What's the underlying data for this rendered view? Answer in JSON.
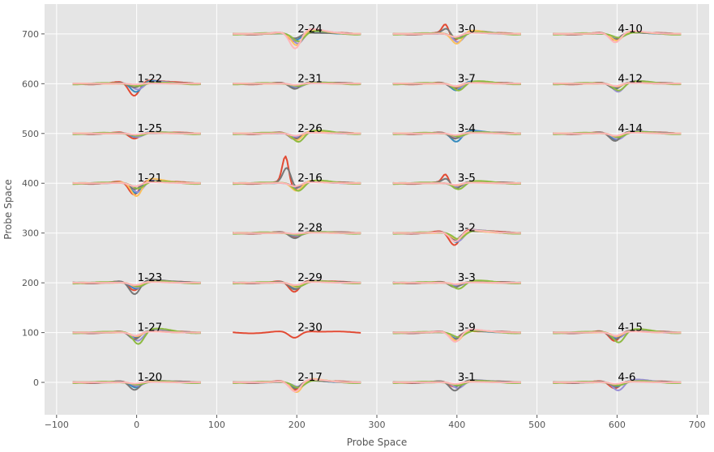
{
  "chart_data": {
    "type": "line",
    "title": "",
    "xlabel": "Probe Space",
    "ylabel": "Probe Space",
    "xlim": [
      -115,
      715
    ],
    "ylim": [
      -65,
      760
    ],
    "xticks": [
      -100,
      0,
      100,
      200,
      300,
      400,
      500,
      600,
      700
    ],
    "yticks": [
      0,
      100,
      200,
      300,
      400,
      500,
      600,
      700
    ],
    "grid": true,
    "background": "#e5e5e5",
    "grid_color": "#ffffff",
    "colors": [
      "#e24a33",
      "#348abd",
      "#988ed5",
      "#777777",
      "#fbc15e",
      "#8eba42",
      "#ffb5b8"
    ],
    "units": [
      {
        "label": "1-22",
        "x": 0,
        "y": 600,
        "dips": [
          -32,
          -22,
          -14,
          -10,
          -6,
          -4,
          -2
        ]
      },
      {
        "label": "1-25",
        "x": 0,
        "y": 500,
        "dips": [
          -14,
          -10,
          -8,
          -6,
          -5,
          -4,
          -3
        ]
      },
      {
        "label": "1-21",
        "x": 0,
        "y": 400,
        "dips": [
          -30,
          -26,
          -22,
          -16,
          -34,
          -12,
          -8
        ]
      },
      {
        "label": "1-23",
        "x": 0,
        "y": 200,
        "dips": [
          -20,
          -16,
          -12,
          -30,
          -10,
          -8,
          -6
        ]
      },
      {
        "label": "1-27",
        "x": 0,
        "y": 100,
        "dips": [
          -16,
          -12,
          -20,
          -18,
          -10,
          -28,
          -8
        ]
      },
      {
        "label": "1-20",
        "x": 0,
        "y": 0,
        "dips": [
          -10,
          -14,
          -8,
          -20,
          -6,
          -4,
          -3
        ]
      },
      {
        "label": "2-24",
        "x": 200,
        "y": 700,
        "dips": [
          -20,
          -16,
          -24,
          -12,
          -30,
          -18,
          -38
        ]
      },
      {
        "label": "2-31",
        "x": 200,
        "y": 600,
        "dips": [
          -12,
          -10,
          -8,
          -14,
          -6,
          -4,
          -3
        ]
      },
      {
        "label": "2-26",
        "x": 200,
        "y": 500,
        "dips": [
          -14,
          -10,
          -8,
          -16,
          -18,
          -20,
          -6
        ]
      },
      {
        "label": "2-16",
        "x": 200,
        "y": 400,
        "dips": [
          -16,
          -12,
          -10,
          -14,
          -20,
          -18,
          -8
        ],
        "spike": 55
      },
      {
        "label": "2-28",
        "x": 200,
        "y": 300,
        "dips": [
          -12,
          -8,
          -6,
          -14,
          -4,
          -3,
          -2
        ]
      },
      {
        "label": "2-29",
        "x": 200,
        "y": 200,
        "dips": [
          -24,
          -16,
          -10,
          -18,
          -12,
          -8,
          -6
        ]
      },
      {
        "label": "2-30",
        "x": 200,
        "y": 100,
        "dips": [
          -14
        ]
      },
      {
        "label": "2-17",
        "x": 200,
        "y": 0,
        "dips": [
          -20,
          -14,
          -10,
          -16,
          -26,
          -12,
          -24
        ]
      },
      {
        "label": "3-0",
        "x": 400,
        "y": 700,
        "dips": [
          -16,
          -12,
          -20,
          -14,
          -26,
          -10,
          -8
        ],
        "spike": 20
      },
      {
        "label": "3-7",
        "x": 400,
        "y": 600,
        "dips": [
          -14,
          -18,
          -10,
          -12,
          -8,
          -16,
          -6
        ]
      },
      {
        "label": "3-4",
        "x": 400,
        "y": 500,
        "dips": [
          -12,
          -22,
          -10,
          -14,
          -8,
          -6,
          -4
        ]
      },
      {
        "label": "3-5",
        "x": 400,
        "y": 400,
        "dips": [
          -12,
          -10,
          -8,
          -16,
          -6,
          -14,
          -4
        ],
        "spike": 18
      },
      {
        "label": "3-2",
        "x": 400,
        "y": 300,
        "dips": [
          -32,
          -24,
          -20,
          -18,
          -16,
          -14,
          -22
        ]
      },
      {
        "label": "3-3",
        "x": 400,
        "y": 200,
        "dips": [
          -10,
          -8,
          -6,
          -12,
          -4,
          -14,
          -3
        ]
      },
      {
        "label": "3-9",
        "x": 400,
        "y": 100,
        "dips": [
          -16,
          -14,
          -12,
          -18,
          -22,
          -10,
          -24
        ]
      },
      {
        "label": "3-1",
        "x": 400,
        "y": 0,
        "dips": [
          -12,
          -10,
          -14,
          -22,
          -8,
          -6,
          -4
        ]
      },
      {
        "label": "4-10",
        "x": 600,
        "y": 700,
        "dips": [
          -16,
          -12,
          -10,
          -14,
          -18,
          -8,
          -22
        ]
      },
      {
        "label": "4-12",
        "x": 600,
        "y": 600,
        "dips": [
          -12,
          -10,
          -20,
          -14,
          -8,
          -16,
          -6
        ]
      },
      {
        "label": "4-14",
        "x": 600,
        "y": 500,
        "dips": [
          -18,
          -16,
          -14,
          -20,
          -10,
          -8,
          -6
        ]
      },
      {
        "label": "4-15",
        "x": 600,
        "y": 100,
        "dips": [
          -22,
          -16,
          -12,
          -18,
          -10,
          -24,
          -8
        ]
      },
      {
        "label": "4-6",
        "x": 600,
        "y": 0,
        "dips": [
          -16,
          -12,
          -20,
          -10,
          -8,
          -6,
          -4
        ]
      }
    ]
  }
}
